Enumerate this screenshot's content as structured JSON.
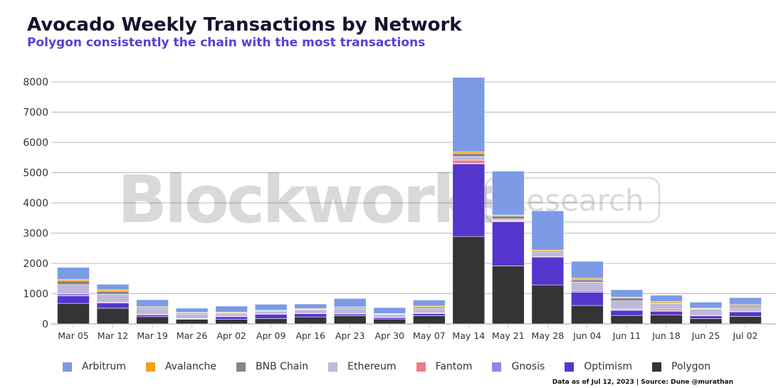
{
  "title": "Avocado Weekly Transactions by Network",
  "subtitle": "Polygon consistently the chain with the most transactions",
  "source": "Data as of Jul 12, 2023 | Source: Dune @murathan",
  "watermark": "Blockworks Research",
  "chart_data": {
    "type": "bar",
    "stacked": true,
    "title": "Avocado Weekly Transactions by Network",
    "xlabel": "",
    "ylabel": "",
    "ylim": [
      0,
      8400
    ],
    "yticks": [
      0,
      1000,
      2000,
      3000,
      4000,
      5000,
      6000,
      7000,
      8000
    ],
    "grid": true,
    "legend_position": "bottom",
    "categories": [
      "Mar 05",
      "Mar 12",
      "Mar 19",
      "Mar 26",
      "Apr 02",
      "Apr 09",
      "Apr 16",
      "Apr 23",
      "Apr 30",
      "May 07",
      "May 14",
      "May 21",
      "May 28",
      "Jun 04",
      "Jun 11",
      "Jun 18",
      "Jun 25",
      "Jul 02"
    ],
    "series": [
      {
        "name": "Polygon",
        "color": "#333436",
        "values": [
          680,
          520,
          240,
          150,
          150,
          180,
          230,
          270,
          160,
          270,
          2890,
          1920,
          1290,
          610,
          280,
          300,
          180,
          250
        ]
      },
      {
        "name": "Optimism",
        "color": "#5536cc",
        "values": [
          250,
          170,
          60,
          20,
          90,
          140,
          110,
          60,
          50,
          70,
          2400,
          1460,
          920,
          440,
          170,
          120,
          90,
          150
        ]
      },
      {
        "name": "Gnosis",
        "color": "#9b7fe6",
        "values": [
          70,
          30,
          20,
          10,
          10,
          10,
          10,
          10,
          10,
          20,
          20,
          20,
          20,
          50,
          20,
          20,
          10,
          20
        ]
      },
      {
        "name": "Fantom",
        "color": "#ee7b86",
        "values": [
          0,
          0,
          0,
          0,
          0,
          0,
          0,
          0,
          0,
          0,
          100,
          20,
          0,
          0,
          30,
          50,
          0,
          0
        ]
      },
      {
        "name": "Ethereum",
        "color": "#c0b8d8",
        "values": [
          300,
          260,
          180,
          150,
          100,
          90,
          120,
          170,
          100,
          150,
          120,
          50,
          130,
          280,
          260,
          180,
          200,
          120
        ]
      },
      {
        "name": "BNB Chain",
        "color": "#86838f",
        "values": [
          120,
          100,
          40,
          30,
          10,
          20,
          20,
          40,
          10,
          40,
          100,
          90,
          40,
          80,
          100,
          30,
          20,
          50
        ]
      },
      {
        "name": "Avalanche",
        "color": "#f0a30a",
        "values": [
          50,
          50,
          30,
          20,
          30,
          10,
          20,
          10,
          10,
          40,
          60,
          40,
          40,
          50,
          30,
          40,
          20,
          50
        ]
      },
      {
        "name": "Arbitrum",
        "color": "#7b9be6",
        "values": [
          400,
          180,
          230,
          140,
          200,
          200,
          150,
          280,
          200,
          200,
          2460,
          1450,
          1300,
          560,
          240,
          210,
          200,
          230
        ]
      }
    ],
    "legend_order": [
      "Arbitrum",
      "Avalanche",
      "BNB Chain",
      "Ethereum",
      "Fantom",
      "Gnosis",
      "Optimism",
      "Polygon"
    ]
  }
}
